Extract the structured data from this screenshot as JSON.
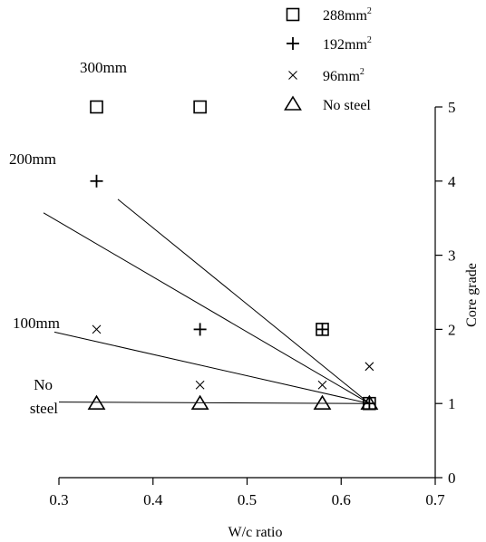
{
  "chart_data": {
    "type": "scatter",
    "xlabel": "W/c ratio",
    "ylabel": "Core grade",
    "xlim": [
      0.3,
      0.7
    ],
    "ylim": [
      0,
      5
    ],
    "xticks": [
      "0.3",
      "0.4",
      "0.5",
      "0.6",
      "0.7"
    ],
    "yticks": [
      "0",
      "1",
      "2",
      "3",
      "4",
      "5"
    ],
    "y_axis_side": "right",
    "grid": false,
    "legend_position": "top-right",
    "series": [
      {
        "name": "288mm",
        "name_superscript": "2",
        "marker": "square",
        "points": [
          [
            0.34,
            5
          ],
          [
            0.45,
            5
          ],
          [
            0.58,
            2
          ],
          [
            0.63,
            1
          ]
        ]
      },
      {
        "name": "192mm",
        "name_superscript": "2",
        "marker": "plus",
        "points": [
          [
            0.34,
            4
          ],
          [
            0.45,
            2
          ],
          [
            0.58,
            2
          ],
          [
            0.63,
            1
          ]
        ]
      },
      {
        "name": "96mm",
        "name_superscript": "2",
        "marker": "cross",
        "points": [
          [
            0.34,
            2
          ],
          [
            0.45,
            1.25
          ],
          [
            0.58,
            1.25
          ],
          [
            0.63,
            1.5
          ]
        ]
      },
      {
        "name": "No steel",
        "name_superscript": "",
        "marker": "triangle",
        "points": [
          [
            0.34,
            1
          ],
          [
            0.45,
            1
          ],
          [
            0.58,
            1
          ],
          [
            0.63,
            1
          ]
        ]
      }
    ],
    "lines": [
      {
        "label": "300mm",
        "from": [
          0.3,
          4.4
        ],
        "to": [
          0.63,
          1
        ]
      },
      {
        "label": "200mm",
        "from": [
          0.3,
          3.45
        ],
        "to": [
          0.63,
          1
        ]
      },
      {
        "label": "100mm",
        "from": [
          0.3,
          1.95
        ],
        "to": [
          0.63,
          1
        ]
      },
      {
        "label": "No steel",
        "from": [
          0.3,
          1.02
        ],
        "to": [
          0.63,
          1
        ]
      }
    ]
  }
}
